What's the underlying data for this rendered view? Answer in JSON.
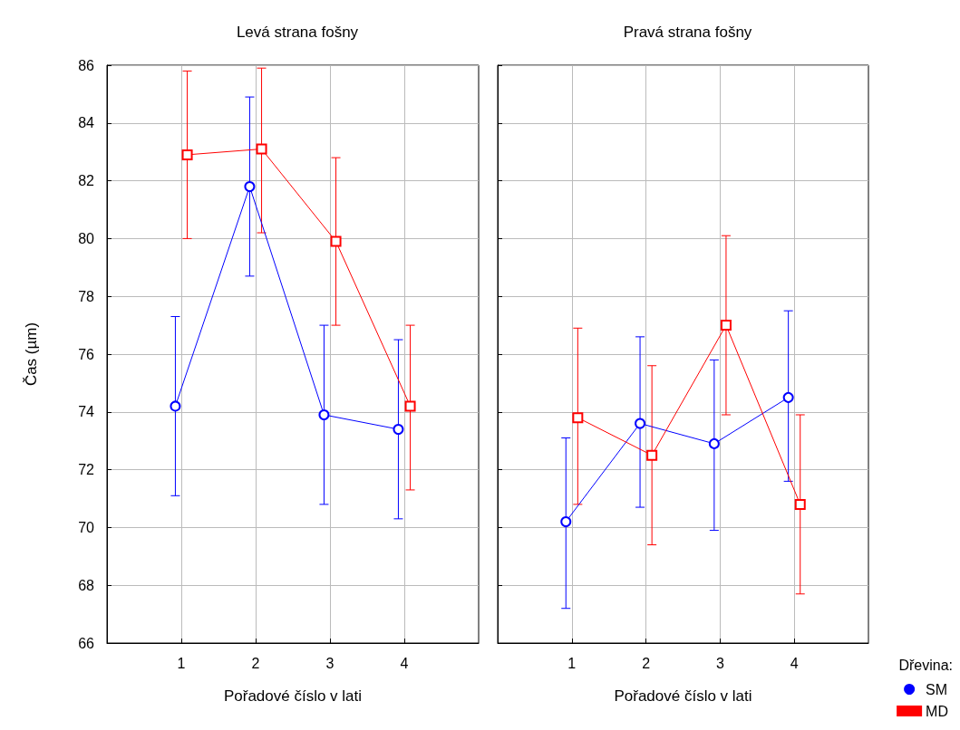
{
  "chart_data": [
    {
      "type": "line",
      "title": "Levá strana fošny",
      "xlabel": "Pořadové číslo v lati",
      "ylabel": "Čas (µm)",
      "xlim": [
        0,
        5
      ],
      "xticks": [
        1,
        2,
        3,
        4
      ],
      "ylim": [
        66,
        86
      ],
      "yticks": [
        66,
        68,
        70,
        72,
        74,
        76,
        78,
        80,
        82,
        84,
        86
      ],
      "grid": true,
      "legend": false,
      "series": [
        {
          "color": "#0000ff",
          "marker": "circle",
          "x": [
            0.92,
            1.92,
            2.92,
            3.92
          ],
          "values": [
            74.2,
            81.8,
            73.9,
            73.4
          ],
          "errors": [
            [
              71.1,
              77.3
            ],
            [
              78.7,
              84.9
            ],
            [
              70.8,
              77.0
            ],
            [
              70.3,
              76.5
            ]
          ]
        },
        {
          "color": "#ff0000",
          "marker": "square",
          "x": [
            1.08,
            2.08,
            3.08,
            4.08
          ],
          "values": [
            82.9,
            83.1,
            79.9,
            74.2
          ],
          "errors": [
            [
              80.0,
              85.8
            ],
            [
              80.2,
              85.9
            ],
            [
              77.0,
              82.8
            ],
            [
              71.3,
              77.0
            ]
          ]
        }
      ]
    },
    {
      "type": "line",
      "title": "Pravá strana fošny",
      "xlabel": "Pořadové číslo v lati",
      "xlim": [
        0,
        5
      ],
      "xticks": [
        1,
        2,
        3,
        4
      ],
      "ylim": [
        66,
        86
      ],
      "yticks": [
        66,
        68,
        70,
        72,
        74,
        76,
        78,
        80,
        82,
        84,
        86
      ],
      "grid": true,
      "tick_labels": "x",
      "legend": "bottom right",
      "legend_title": "Dřevina:",
      "series": [
        {
          "name": "SM",
          "color": "#0000ff",
          "marker": "circle",
          "x": [
            0.92,
            1.92,
            2.92,
            3.92
          ],
          "values": [
            70.2,
            73.6,
            72.9,
            74.5
          ],
          "errors": [
            [
              67.2,
              73.1
            ],
            [
              70.7,
              76.6
            ],
            [
              69.9,
              75.8
            ],
            [
              71.6,
              77.5
            ]
          ]
        },
        {
          "name": "MD",
          "color": "#ff0000",
          "marker": "square",
          "x": [
            1.08,
            2.08,
            3.08,
            4.08
          ],
          "values": [
            73.8,
            72.5,
            77.0,
            70.8
          ],
          "errors": [
            [
              70.8,
              76.9
            ],
            [
              69.4,
              75.6
            ],
            [
              73.9,
              80.1
            ],
            [
              67.7,
              73.9
            ]
          ]
        }
      ]
    }
  ]
}
